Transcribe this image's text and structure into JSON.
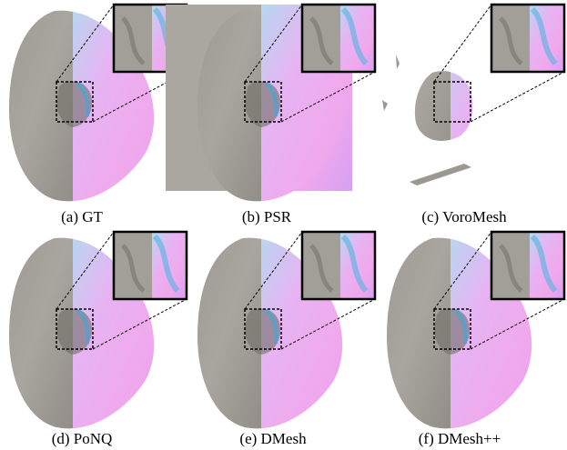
{
  "captions": [
    "(a) GT",
    "(b) PSR",
    "(c) VoroMesh",
    "(d) PoNQ",
    "(e) DMesh",
    "(f) DMesh++"
  ]
}
